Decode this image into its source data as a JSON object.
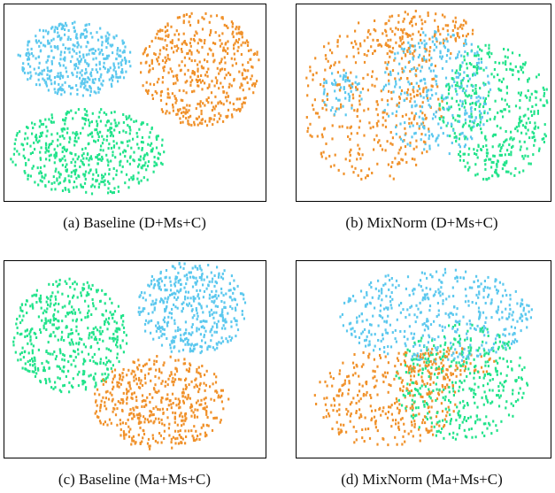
{
  "figure": {
    "captions": [
      "(a)  Baseline (D+Ms+C)",
      "(b)  MixNorm (D+Ms+C)",
      "(c)  Baseline (Ma+Ms+C)",
      "(d)  MixNorm (Ma+Ms+C)"
    ],
    "colors": {
      "cyan": "#5bc8ee",
      "orange": "#f0912a",
      "green": "#22e38b"
    }
  },
  "chart_data": [
    {
      "type": "scatter",
      "title": "(a)  Baseline (D+Ms+C)",
      "xlim": [
        0,
        1
      ],
      "ylim": [
        0,
        1
      ],
      "grid": false,
      "legend": "none",
      "series": [
        {
          "color": "cyan",
          "clusters": [
            {
              "cx": 0.27,
              "cy": 0.72,
              "rx": 0.22,
              "ry": 0.19,
              "n": 420
            }
          ]
        },
        {
          "color": "orange",
          "clusters": [
            {
              "cx": 0.75,
              "cy": 0.67,
              "rx": 0.23,
              "ry": 0.29,
              "n": 480
            }
          ]
        },
        {
          "color": "green",
          "clusters": [
            {
              "cx": 0.32,
              "cy": 0.25,
              "rx": 0.3,
              "ry": 0.22,
              "n": 520
            }
          ]
        }
      ]
    },
    {
      "type": "scatter",
      "title": "(b)  MixNorm (D+Ms+C)",
      "xlim": [
        0,
        1
      ],
      "ylim": [
        0,
        1
      ],
      "grid": false,
      "legend": "none",
      "series": [
        {
          "color": "orange",
          "clusters": [
            {
              "cx": 0.3,
              "cy": 0.5,
              "rx": 0.28,
              "ry": 0.42,
              "n": 360
            },
            {
              "cx": 0.5,
              "cy": 0.85,
              "rx": 0.2,
              "ry": 0.12,
              "n": 120
            }
          ]
        },
        {
          "color": "cyan",
          "clusters": [
            {
              "cx": 0.55,
              "cy": 0.55,
              "rx": 0.22,
              "ry": 0.32,
              "n": 320
            },
            {
              "cx": 0.18,
              "cy": 0.55,
              "rx": 0.08,
              "ry": 0.12,
              "n": 60
            }
          ]
        },
        {
          "color": "green",
          "clusters": [
            {
              "cx": 0.78,
              "cy": 0.45,
              "rx": 0.22,
              "ry": 0.35,
              "n": 420
            }
          ]
        }
      ]
    },
    {
      "type": "scatter",
      "title": "(c)  Baseline (Ma+Ms+C)",
      "xlim": [
        0,
        1
      ],
      "ylim": [
        0,
        1
      ],
      "grid": false,
      "legend": "none",
      "series": [
        {
          "color": "green",
          "clusters": [
            {
              "cx": 0.25,
              "cy": 0.62,
              "rx": 0.22,
              "ry": 0.29,
              "n": 460
            }
          ]
        },
        {
          "color": "cyan",
          "clusters": [
            {
              "cx": 0.72,
              "cy": 0.76,
              "rx": 0.21,
              "ry": 0.24,
              "n": 440
            }
          ]
        },
        {
          "color": "orange",
          "clusters": [
            {
              "cx": 0.6,
              "cy": 0.28,
              "rx": 0.26,
              "ry": 0.24,
              "n": 480
            }
          ]
        }
      ]
    },
    {
      "type": "scatter",
      "title": "(d)  MixNorm (Ma+Ms+C)",
      "xlim": [
        0,
        1
      ],
      "ylim": [
        0,
        1
      ],
      "grid": false,
      "legend": "none",
      "series": [
        {
          "color": "cyan",
          "clusters": [
            {
              "cx": 0.55,
              "cy": 0.72,
              "rx": 0.38,
              "ry": 0.24,
              "n": 460
            }
          ]
        },
        {
          "color": "orange",
          "clusters": [
            {
              "cx": 0.35,
              "cy": 0.3,
              "rx": 0.28,
              "ry": 0.25,
              "n": 330
            },
            {
              "cx": 0.6,
              "cy": 0.48,
              "rx": 0.18,
              "ry": 0.08,
              "n": 80
            }
          ]
        },
        {
          "color": "green",
          "clusters": [
            {
              "cx": 0.65,
              "cy": 0.38,
              "rx": 0.26,
              "ry": 0.3,
              "n": 380
            }
          ]
        }
      ]
    }
  ]
}
